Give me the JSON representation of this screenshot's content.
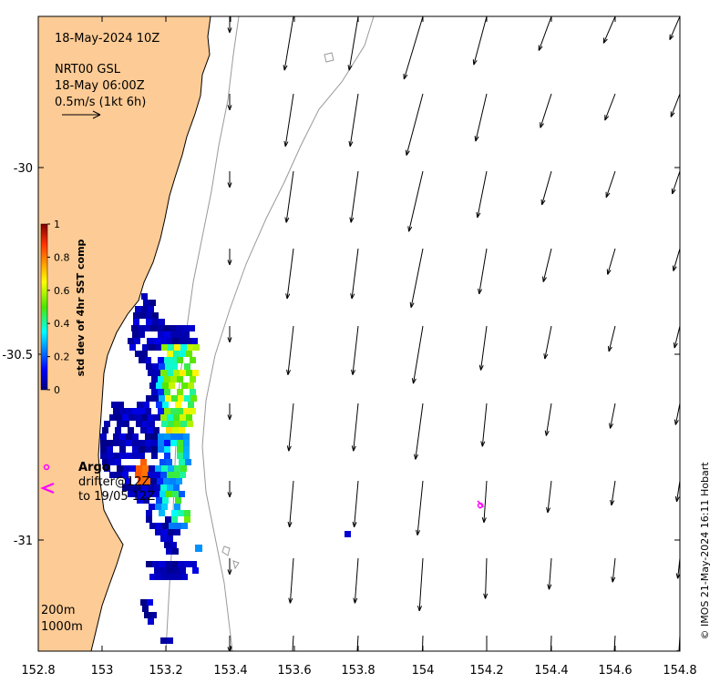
{
  "info": {
    "date": "18-May-2024 10Z",
    "source": "NRT00 GSL",
    "source_time": "18-May 06:00Z",
    "scale_text": "0.5m/s (1kt 6h)"
  },
  "colorbar": {
    "label": "std dev of 4hr SST comp",
    "ticks": [
      "0",
      "0.2",
      "0.4",
      "0.6",
      "0.8",
      "1"
    ]
  },
  "argo": {
    "title": "Argo",
    "line1": "drifter@12Z",
    "line2": "to 19/05 12Z"
  },
  "depth_labels": {
    "shallow": "200m",
    "deep": "1000m"
  },
  "credit": "© IMOS 21-May-2024 16:11 Hobart",
  "axes": {
    "x_ticks": [
      "152.8",
      "153",
      "153.2",
      "153.4",
      "153.6",
      "153.8",
      "154",
      "154.2",
      "154.4",
      "154.6",
      "154.8"
    ],
    "y_ticks": [
      "-30",
      "-30.5",
      "-31"
    ]
  },
  "colors": {
    "land": "#FDCB95",
    "argo_marker": "#FF00FF",
    "contour": "#9a9a9a"
  }
}
